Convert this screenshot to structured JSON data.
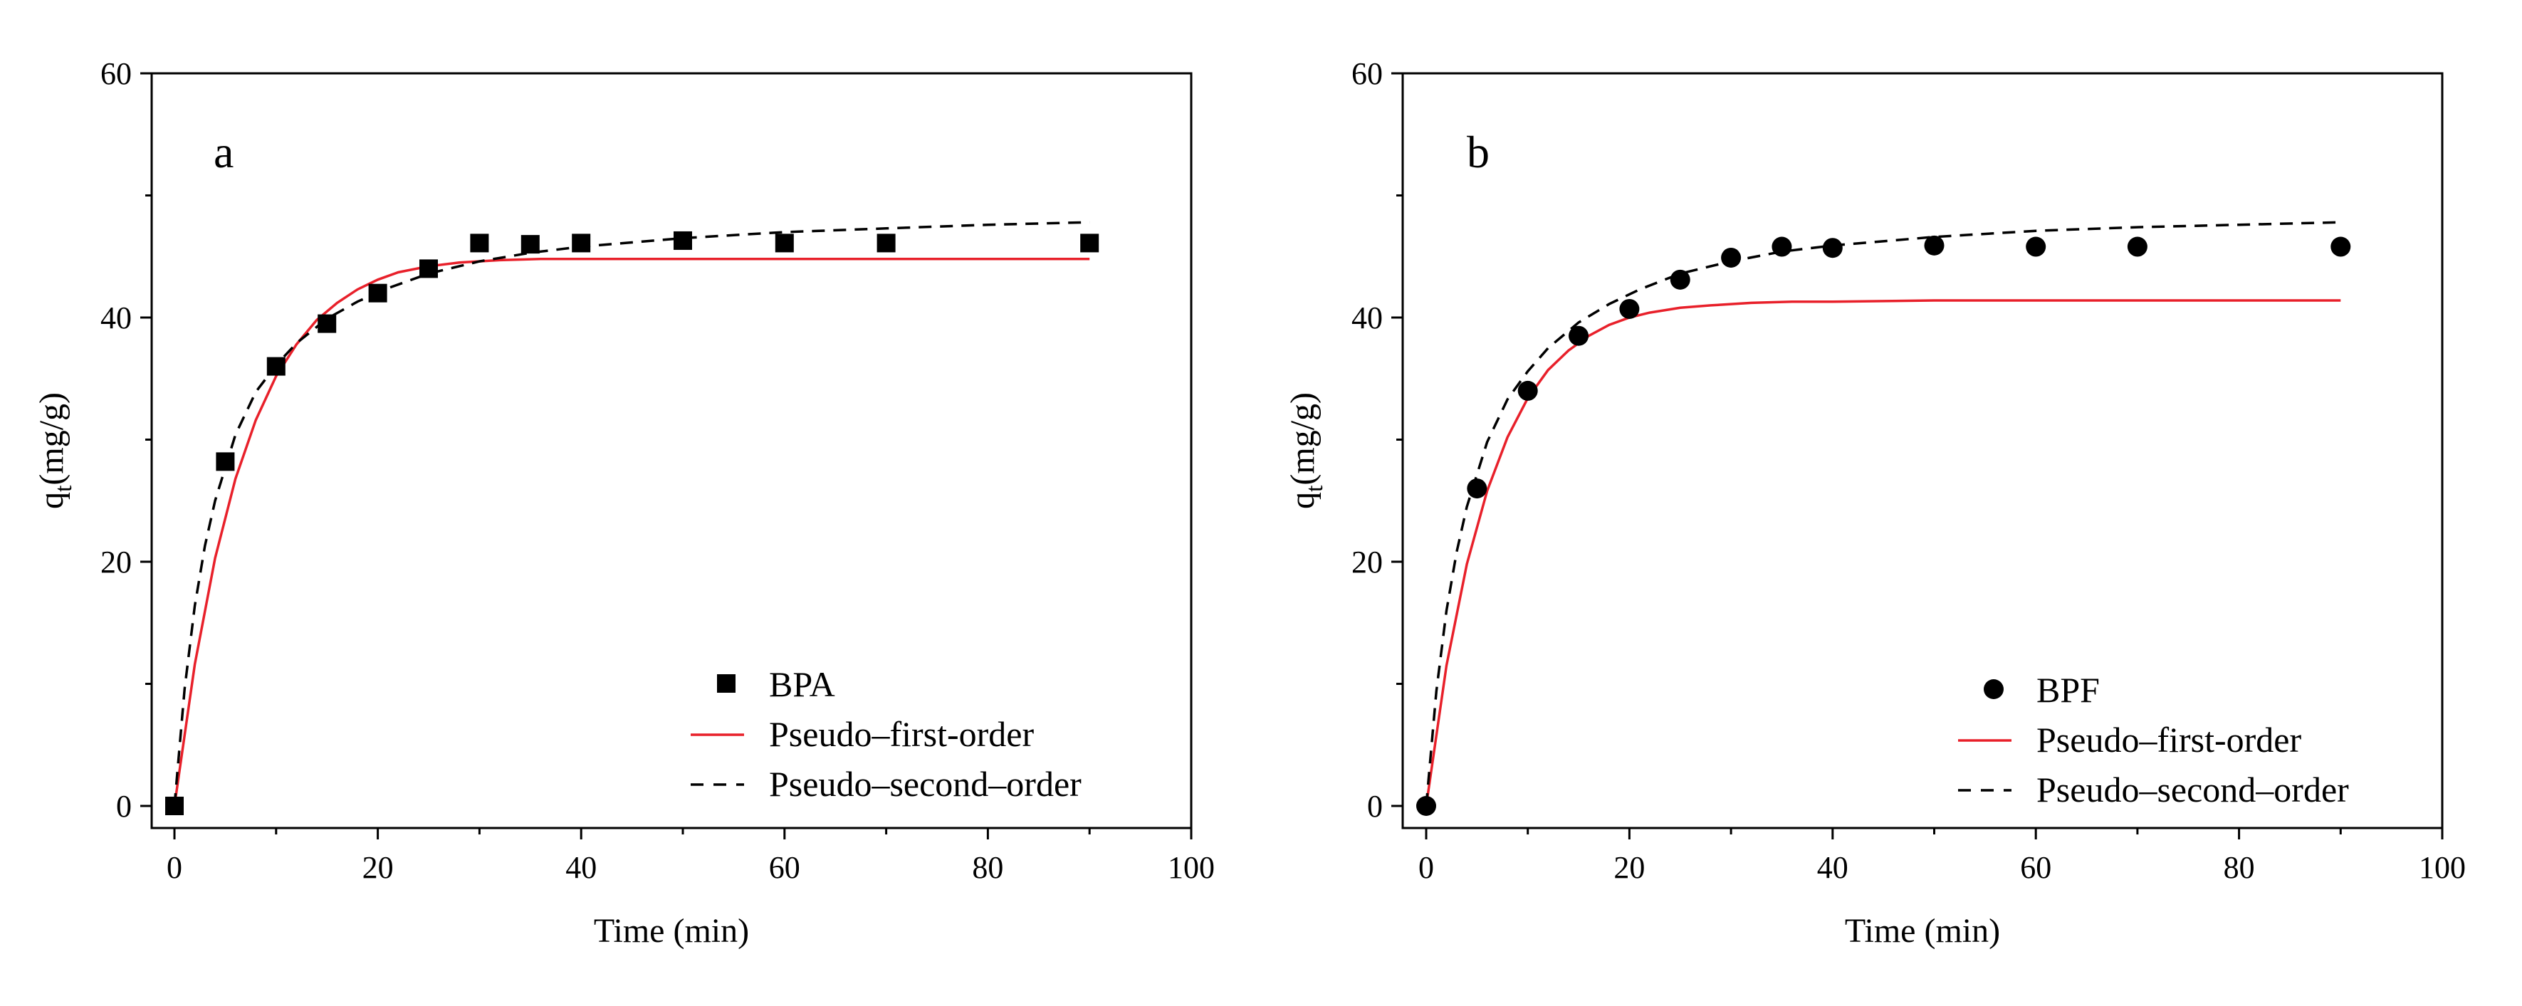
{
  "chart_data": [
    {
      "type": "scatter",
      "panel_label": "a",
      "xlabel": "Time (min)",
      "ylabel": {
        "main": "q",
        "sub": "t",
        "unit": "(mg/g)"
      },
      "xlim": [
        0,
        100
      ],
      "ylim": [
        0,
        60
      ],
      "xticks": [
        0,
        20,
        40,
        60,
        80,
        100
      ],
      "yticks": [
        0,
        20,
        40,
        60
      ],
      "grid": false,
      "legend_position": "bottom-right",
      "series": [
        {
          "name": "BPA",
          "kind": "markers",
          "marker": "square",
          "color": "#000000",
          "x": [
            0,
            5,
            10,
            15,
            20,
            25,
            30,
            35,
            40,
            50,
            60,
            70,
            90
          ],
          "y": [
            0,
            28.2,
            36.0,
            39.5,
            42.0,
            44.0,
            46.1,
            46.0,
            46.1,
            46.3,
            46.1,
            46.1,
            46.1
          ]
        },
        {
          "name": "Pseudo–first-order",
          "kind": "line",
          "color": "#e8202a",
          "x": [
            0,
            2,
            4,
            6,
            8,
            10,
            12,
            14,
            16,
            18,
            20,
            22,
            25,
            28,
            32,
            36,
            40,
            50,
            60,
            70,
            80,
            90
          ],
          "y": [
            0,
            11.6,
            20.3,
            26.8,
            31.6,
            35.2,
            37.8,
            39.8,
            41.2,
            42.3,
            43.1,
            43.7,
            44.2,
            44.5,
            44.7,
            44.8,
            44.8,
            44.8,
            44.8,
            44.8,
            44.8,
            44.8
          ]
        },
        {
          "name": "Pseudo–second–order",
          "kind": "dashed",
          "color": "#000000",
          "x": [
            0,
            1,
            2,
            3,
            4,
            6,
            8,
            10,
            12,
            15,
            18,
            21,
            25,
            30,
            35,
            40,
            50,
            60,
            70,
            80,
            90
          ],
          "y": [
            0,
            9.6,
            16.4,
            21.3,
            25.0,
            30.4,
            33.9,
            36.1,
            37.9,
            39.9,
            41.3,
            42.4,
            43.6,
            44.6,
            45.3,
            45.8,
            46.5,
            47.0,
            47.3,
            47.6,
            47.8
          ]
        }
      ]
    },
    {
      "type": "scatter",
      "panel_label": "b",
      "xlabel": "Time (min)",
      "ylabel": {
        "main": "q",
        "sub": "t",
        "unit": "(mg/g)"
      },
      "xlim": [
        0,
        100
      ],
      "ylim": [
        0,
        60
      ],
      "xticks": [
        0,
        20,
        40,
        60,
        80,
        100
      ],
      "yticks": [
        0,
        20,
        40,
        60
      ],
      "grid": false,
      "legend_position": "bottom-right",
      "series": [
        {
          "name": "BPF",
          "kind": "markers",
          "marker": "circle",
          "color": "#000000",
          "x": [
            0,
            5,
            10,
            15,
            20,
            25,
            30,
            35,
            40,
            50,
            60,
            70,
            90
          ],
          "y": [
            0,
            26.0,
            34.0,
            38.5,
            40.7,
            43.1,
            44.9,
            45.8,
            45.7,
            45.9,
            45.8,
            45.8,
            45.8
          ]
        },
        {
          "name": "Pseudo–first-order",
          "kind": "line",
          "color": "#e8202a",
          "x": [
            0,
            2,
            4,
            6,
            8,
            10,
            12,
            14,
            16,
            18,
            20,
            22,
            25,
            28,
            32,
            36,
            40,
            50,
            60,
            70,
            80,
            90
          ],
          "y": [
            0,
            11.5,
            19.8,
            25.8,
            30.2,
            33.4,
            35.7,
            37.3,
            38.5,
            39.4,
            40.0,
            40.4,
            40.8,
            41.0,
            41.2,
            41.3,
            41.3,
            41.4,
            41.4,
            41.4,
            41.4,
            41.4
          ]
        },
        {
          "name": "Pseudo–second–order",
          "kind": "dashed",
          "color": "#000000",
          "x": [
            0,
            1,
            2,
            3,
            4,
            6,
            8,
            10,
            12,
            15,
            18,
            21,
            25,
            30,
            35,
            40,
            50,
            60,
            70,
            80,
            90
          ],
          "y": [
            0,
            9.4,
            16.0,
            20.8,
            24.5,
            29.8,
            33.3,
            35.6,
            37.5,
            39.6,
            41.1,
            42.3,
            43.6,
            44.6,
            45.4,
            45.9,
            46.6,
            47.1,
            47.4,
            47.6,
            47.8
          ]
        }
      ]
    }
  ]
}
